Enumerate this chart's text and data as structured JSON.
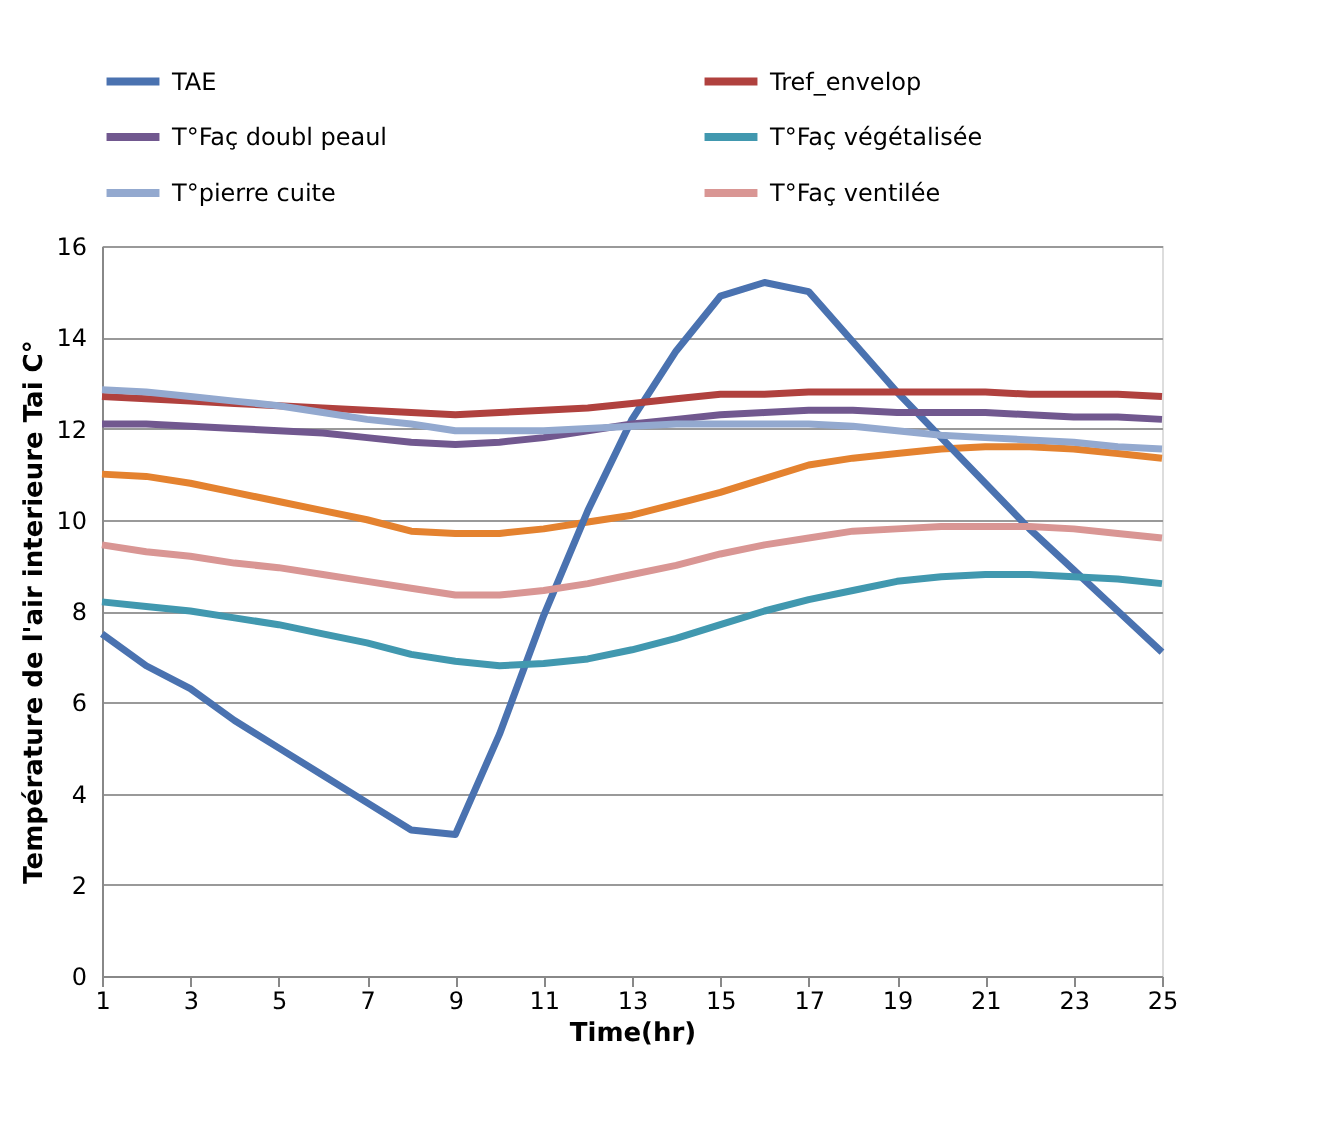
{
  "chart_data": {
    "type": "line",
    "xlabel": "Time(hr)",
    "ylabel": "Température de l'air interieure Tai C°",
    "x": [
      1,
      2,
      3,
      4,
      5,
      6,
      7,
      8,
      9,
      10,
      11,
      12,
      13,
      14,
      15,
      16,
      17,
      18,
      19,
      20,
      21,
      22,
      23,
      24,
      25
    ],
    "xlim": [
      1,
      25
    ],
    "xticks": [
      1,
      3,
      5,
      7,
      9,
      11,
      13,
      15,
      17,
      19,
      21,
      23,
      25
    ],
    "ylim": [
      0,
      16
    ],
    "yticks": [
      0,
      2,
      4,
      6,
      8,
      10,
      12,
      14,
      16
    ],
    "grid": "y",
    "legend": "top",
    "marker": "none",
    "line_style": "solid",
    "series": [
      {
        "name": "TAE",
        "color": "#4a72b0",
        "values": [
          7.5,
          6.8,
          6.3,
          5.6,
          5.0,
          4.4,
          3.8,
          3.2,
          3.1,
          5.3,
          7.9,
          10.2,
          12.2,
          13.7,
          14.9,
          15.2,
          15.0,
          13.9,
          12.8,
          11.8,
          10.8,
          9.8,
          8.9,
          8.0,
          7.1
        ]
      },
      {
        "name": "Tref_envelop",
        "color": "#b0413e",
        "values": [
          12.7,
          12.65,
          12.6,
          12.55,
          12.5,
          12.45,
          12.4,
          12.35,
          12.3,
          12.35,
          12.4,
          12.45,
          12.55,
          12.65,
          12.75,
          12.75,
          12.8,
          12.8,
          12.8,
          12.8,
          12.8,
          12.75,
          12.75,
          12.75,
          12.7
        ]
      },
      {
        "name": "T°Faç doubl peaul",
        "color": "#71588f",
        "values": [
          12.1,
          12.1,
          12.05,
          12.0,
          11.95,
          11.9,
          11.8,
          11.7,
          11.65,
          11.7,
          11.8,
          11.95,
          12.1,
          12.2,
          12.3,
          12.35,
          12.4,
          12.4,
          12.35,
          12.35,
          12.35,
          12.3,
          12.25,
          12.25,
          12.2
        ]
      },
      {
        "name": "T°Faç végétalisée",
        "color": "#4198af",
        "values": [
          8.2,
          8.1,
          8.0,
          7.85,
          7.7,
          7.5,
          7.3,
          7.05,
          6.9,
          6.8,
          6.85,
          6.95,
          7.15,
          7.4,
          7.7,
          8.0,
          8.25,
          8.45,
          8.65,
          8.75,
          8.8,
          8.8,
          8.75,
          8.7,
          8.6
        ]
      },
      {
        "name": "T°pierre cuite",
        "color": "#93a9cf",
        "values": [
          12.85,
          12.8,
          12.7,
          12.6,
          12.5,
          12.35,
          12.2,
          12.1,
          11.95,
          11.95,
          11.95,
          12.0,
          12.05,
          12.1,
          12.1,
          12.1,
          12.1,
          12.05,
          11.95,
          11.85,
          11.8,
          11.75,
          11.7,
          11.6,
          11.55
        ]
      },
      {
        "name": "T°Faç ventilée",
        "color": "#d99694",
        "values": [
          9.45,
          9.3,
          9.2,
          9.05,
          8.95,
          8.8,
          8.65,
          8.5,
          8.35,
          8.35,
          8.45,
          8.6,
          8.8,
          9.0,
          9.25,
          9.45,
          9.6,
          9.75,
          9.8,
          9.85,
          9.85,
          9.85,
          9.8,
          9.7,
          9.6
        ]
      },
      {
        "color": "#e4822f",
        "values": [
          11.0,
          10.95,
          10.8,
          10.6,
          10.4,
          10.2,
          10.0,
          9.75,
          9.7,
          9.7,
          9.8,
          9.95,
          10.1,
          10.35,
          10.6,
          10.9,
          11.2,
          11.35,
          11.45,
          11.55,
          11.6,
          11.6,
          11.55,
          11.45,
          11.35
        ]
      }
    ]
  }
}
